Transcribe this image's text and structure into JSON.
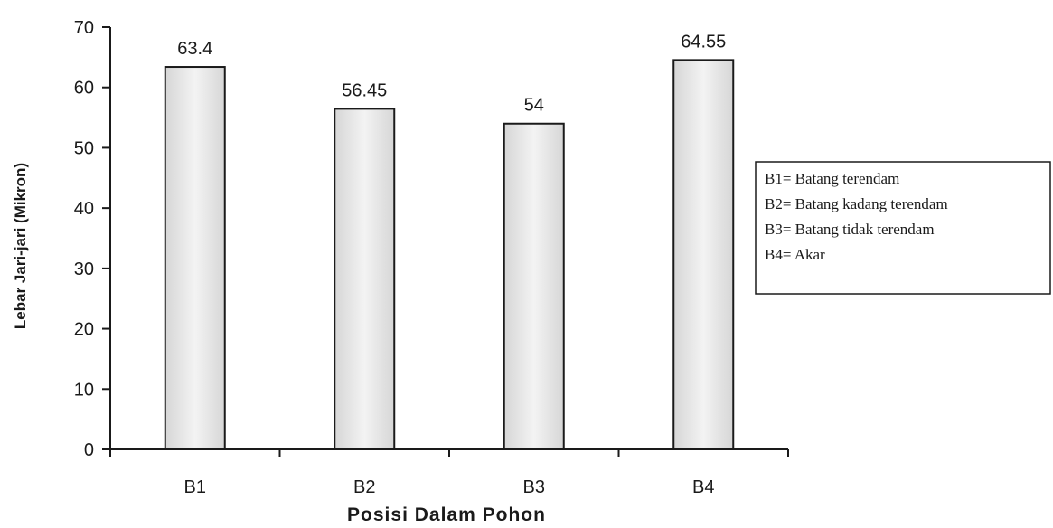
{
  "chart_data": {
    "type": "bar",
    "categories": [
      "B1",
      "B2",
      "B3",
      "B4"
    ],
    "values": [
      63.4,
      56.45,
      54,
      64.55
    ],
    "data_labels": [
      "63.4",
      "56.45",
      "54",
      "64.55"
    ],
    "xlabel": "Posisi Dalam Pohon",
    "ylabel": "Lebar Jari-jari (Mikron)",
    "ylim": [
      0,
      70
    ],
    "yticks": [
      0,
      10,
      20,
      30,
      40,
      50,
      60,
      70
    ],
    "grid": false,
    "legend_position": "right",
    "legend": [
      "B1= Batang terendam",
      "B2= Batang kadang terendam",
      "B3= Batang tidak terendam",
      "B4= Akar"
    ],
    "bar_fill": "#ededed",
    "bar_edge": "#1a1a1a"
  }
}
